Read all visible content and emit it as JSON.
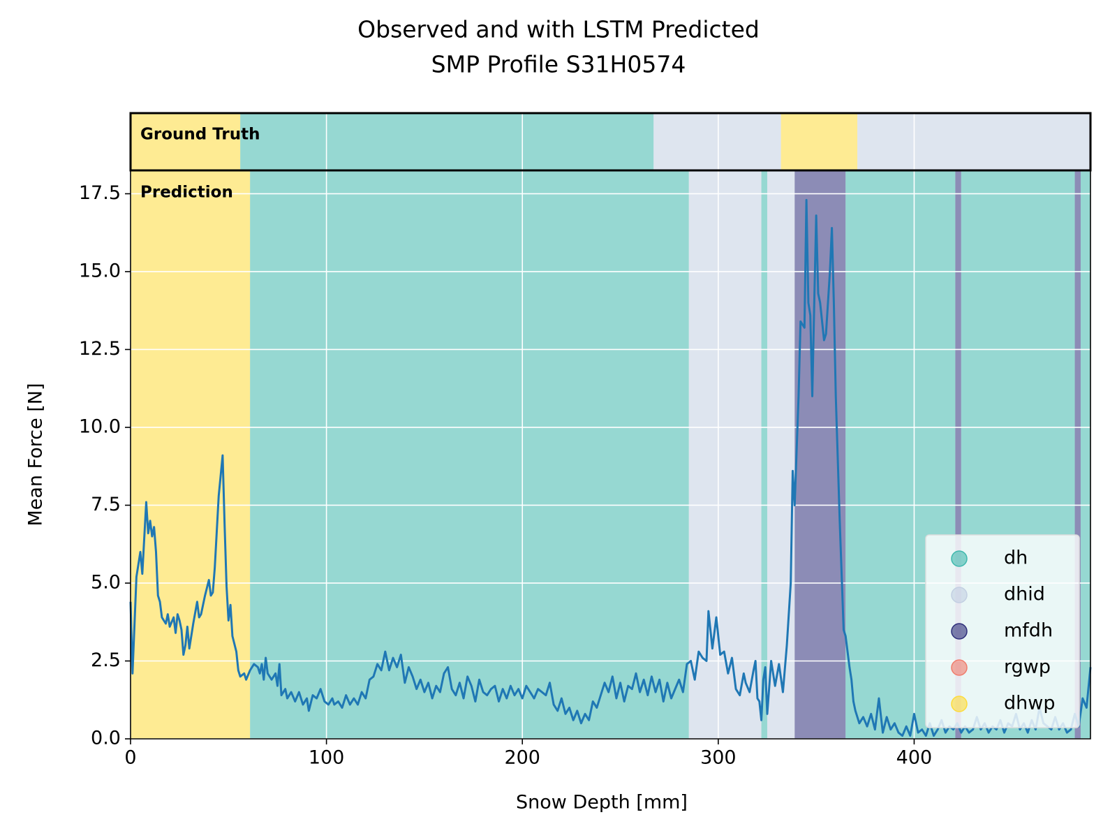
{
  "chart_data": {
    "type": "line",
    "title": "Observed and with LSTM Predicted",
    "subtitle": "SMP Profile S31H0574",
    "x_label": "Snow Depth [mm]",
    "y_label": "Mean Force [N]",
    "xlim": [
      0,
      490
    ],
    "ylim": [
      0,
      18.25
    ],
    "xticks": [
      0,
      100,
      200,
      300,
      400
    ],
    "yticks": [
      {
        "value": 0,
        "label": "0.0"
      },
      {
        "value": 2.5,
        "label": "2.5"
      },
      {
        "value": 5,
        "label": "5.0"
      },
      {
        "value": 7.5,
        "label": "7.5"
      },
      {
        "value": 10,
        "label": "10.0"
      },
      {
        "value": 12.5,
        "label": "12.5"
      },
      {
        "value": 15,
        "label": "15.0"
      },
      {
        "value": 17.5,
        "label": "17.5"
      }
    ],
    "grid": true,
    "legend_position": "lower right",
    "classes": [
      {
        "name": "dh",
        "color": "#3fb8ad"
      },
      {
        "name": "dhid",
        "color": "#c2cfe2"
      },
      {
        "name": "mfdh",
        "color": "#2e2e7a"
      },
      {
        "name": "rgwp",
        "color": "#f07c6c"
      },
      {
        "name": "dhwp",
        "color": "#fddb3a"
      }
    ],
    "ground_truth": {
      "label": "Ground Truth",
      "segments": [
        {
          "class": "dhwp",
          "start": 0,
          "end": 56
        },
        {
          "class": "dh",
          "start": 56,
          "end": 267
        },
        {
          "class": "dhid",
          "start": 267,
          "end": 332
        },
        {
          "class": "dhwp",
          "start": 332,
          "end": 371
        },
        {
          "class": "dhid",
          "start": 371,
          "end": 490
        }
      ]
    },
    "prediction": {
      "label": "Prediction",
      "segments": [
        {
          "class": "dhwp",
          "start": 0,
          "end": 61
        },
        {
          "class": "dh",
          "start": 61,
          "end": 285
        },
        {
          "class": "dhid",
          "start": 285,
          "end": 322
        },
        {
          "class": "dh",
          "start": 322,
          "end": 325
        },
        {
          "class": "dhid",
          "start": 325,
          "end": 339
        },
        {
          "class": "mfdh",
          "start": 339,
          "end": 365
        },
        {
          "class": "dh",
          "start": 365,
          "end": 421
        },
        {
          "class": "mfdh",
          "start": 421,
          "end": 424
        },
        {
          "class": "dh",
          "start": 424,
          "end": 482
        },
        {
          "class": "mfdh",
          "start": 482,
          "end": 485
        },
        {
          "class": "dh",
          "start": 485,
          "end": 490
        }
      ]
    },
    "x": [
      0,
      1,
      3,
      5,
      6,
      8,
      9,
      10,
      11,
      12,
      13,
      14,
      15,
      16,
      18,
      19,
      20,
      22,
      23,
      24,
      25,
      26,
      27,
      28,
      29,
      30,
      32,
      34,
      35,
      36,
      38,
      40,
      41,
      42,
      43,
      45,
      47,
      48,
      49,
      50,
      51,
      52,
      54,
      55,
      56,
      58,
      59,
      61,
      63,
      65,
      66,
      67,
      68,
      69,
      70,
      72,
      74,
      75,
      76,
      77,
      79,
      80,
      82,
      84,
      86,
      88,
      90,
      91,
      93,
      95,
      97,
      99,
      101,
      103,
      104,
      106,
      108,
      110,
      112,
      114,
      116,
      118,
      120,
      122,
      124,
      126,
      128,
      130,
      132,
      134,
      136,
      138,
      140,
      142,
      144,
      146,
      148,
      150,
      152,
      154,
      156,
      158,
      160,
      162,
      164,
      166,
      168,
      170,
      172,
      174,
      176,
      178,
      180,
      182,
      184,
      186,
      188,
      190,
      192,
      194,
      196,
      198,
      200,
      202,
      204,
      206,
      208,
      210,
      212,
      214,
      216,
      218,
      220,
      222,
      224,
      226,
      228,
      230,
      232,
      234,
      236,
      238,
      240,
      242,
      244,
      246,
      248,
      250,
      252,
      254,
      256,
      258,
      260,
      262,
      264,
      266,
      268,
      270,
      272,
      274,
      276,
      278,
      280,
      282,
      284,
      286,
      288,
      290,
      292,
      294,
      295,
      297,
      299,
      301,
      303,
      305,
      307,
      309,
      311,
      313,
      314,
      316,
      318,
      319,
      320,
      321,
      322,
      323,
      324,
      325,
      327,
      329,
      331,
      333,
      335,
      337,
      338,
      339,
      341,
      342,
      344,
      345,
      346,
      347,
      348,
      349,
      350,
      351,
      352,
      354,
      355,
      357,
      358,
      359,
      360,
      362,
      364,
      365,
      367,
      368,
      369,
      370,
      372,
      374,
      376,
      378,
      380,
      382,
      384,
      386,
      388,
      390,
      392,
      394,
      396,
      398,
      400,
      402,
      404,
      406,
      408,
      410,
      412,
      414,
      416,
      418,
      420,
      422,
      424,
      426,
      428,
      430,
      432,
      434,
      436,
      438,
      440,
      442,
      444,
      446,
      448,
      450,
      452,
      454,
      456,
      458,
      460,
      462,
      464,
      466,
      468,
      470,
      472,
      474,
      476,
      478,
      480,
      482,
      484,
      486,
      488,
      490
    ],
    "series": [
      {
        "color": "#1f77b4",
        "values": [
          4.4,
          2.1,
          5.2,
          6.0,
          5.3,
          7.6,
          6.6,
          7.0,
          6.5,
          6.8,
          6.0,
          4.6,
          4.4,
          3.9,
          3.7,
          4.0,
          3.6,
          3.9,
          3.4,
          4.0,
          3.8,
          3.5,
          2.7,
          3.0,
          3.6,
          2.9,
          3.7,
          4.4,
          3.9,
          4.0,
          4.6,
          5.1,
          4.6,
          4.7,
          5.5,
          7.8,
          9.1,
          6.9,
          4.9,
          3.8,
          4.3,
          3.3,
          2.8,
          2.2,
          2.0,
          2.1,
          1.9,
          2.2,
          2.4,
          2.3,
          2.1,
          2.4,
          1.9,
          2.6,
          2.1,
          1.9,
          2.1,
          1.7,
          2.4,
          1.4,
          1.6,
          1.3,
          1.5,
          1.2,
          1.5,
          1.1,
          1.3,
          0.9,
          1.4,
          1.3,
          1.6,
          1.2,
          1.1,
          1.3,
          1.1,
          1.2,
          1.0,
          1.4,
          1.1,
          1.3,
          1.1,
          1.5,
          1.3,
          1.9,
          2.0,
          2.4,
          2.2,
          2.8,
          2.2,
          2.6,
          2.3,
          2.7,
          1.8,
          2.3,
          2.0,
          1.6,
          1.9,
          1.5,
          1.8,
          1.3,
          1.7,
          1.5,
          2.1,
          2.3,
          1.6,
          1.4,
          1.8,
          1.3,
          2.0,
          1.7,
          1.2,
          1.9,
          1.5,
          1.4,
          1.6,
          1.7,
          1.2,
          1.6,
          1.3,
          1.7,
          1.4,
          1.6,
          1.3,
          1.7,
          1.5,
          1.3,
          1.6,
          1.5,
          1.4,
          1.8,
          1.1,
          0.9,
          1.3,
          0.8,
          1.0,
          0.6,
          0.9,
          0.5,
          0.8,
          0.6,
          1.2,
          1.0,
          1.4,
          1.8,
          1.5,
          2.0,
          1.3,
          1.8,
          1.2,
          1.7,
          1.6,
          2.1,
          1.5,
          1.9,
          1.4,
          2.0,
          1.5,
          1.9,
          1.2,
          1.8,
          1.3,
          1.6,
          1.9,
          1.5,
          2.4,
          2.5,
          1.9,
          2.8,
          2.6,
          2.5,
          4.1,
          2.9,
          3.9,
          2.7,
          2.8,
          2.1,
          2.6,
          1.6,
          1.4,
          2.1,
          1.8,
          1.5,
          2.2,
          2.5,
          1.3,
          1.2,
          0.6,
          1.9,
          2.3,
          0.8,
          2.5,
          1.7,
          2.4,
          1.5,
          3.0,
          5.0,
          8.6,
          7.5,
          11.0,
          13.4,
          13.2,
          17.3,
          14.0,
          13.6,
          11.0,
          14.0,
          16.8,
          14.3,
          14.0,
          12.8,
          13.0,
          15.0,
          16.4,
          14.0,
          11.0,
          7.0,
          3.5,
          3.3,
          2.3,
          1.9,
          1.2,
          0.9,
          0.5,
          0.7,
          0.4,
          0.8,
          0.3,
          1.3,
          0.2,
          0.7,
          0.3,
          0.5,
          0.2,
          0.1,
          0.4,
          0.1,
          0.8,
          0.2,
          0.3,
          0.1,
          0.5,
          0.1,
          0.3,
          0.6,
          0.2,
          0.4,
          0.3,
          0.5,
          0.2,
          0.4,
          0.2,
          0.3,
          0.7,
          0.3,
          0.5,
          0.2,
          0.4,
          0.3,
          0.6,
          0.2,
          0.5,
          0.4,
          0.8,
          0.3,
          0.5,
          0.2,
          0.6,
          0.3,
          1.0,
          0.5,
          0.4,
          0.3,
          0.7,
          0.3,
          0.5,
          0.2,
          0.3,
          0.8,
          0.4,
          1.3,
          1.0,
          2.3
        ]
      }
    ]
  }
}
